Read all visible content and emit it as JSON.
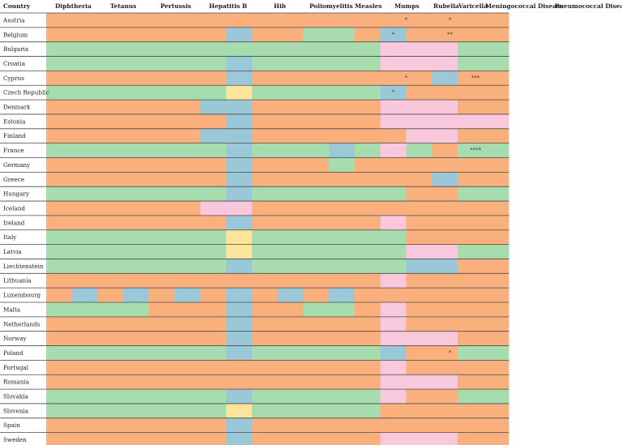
{
  "chart_data": {
    "type": "heatmap",
    "row_header": "Country",
    "columns": [
      "Diphtheria",
      "Tetanus",
      "Pertussis",
      "Hepatitis B",
      "Hib",
      "Poliomyelitis",
      "Measles",
      "Mumps",
      "Rubella",
      "Varicella",
      "Meningococcal Disease",
      "Pneumococcal Disease"
    ],
    "colors": {
      "O": "#f9b07d",
      "G": "#a7dcae",
      "B": "#9bc8d9",
      "P": "#f9c8dc",
      "Y": "#fce49b"
    },
    "rows": [
      {
        "country": "Austria",
        "cells": [
          [
            "O",
            0,
            18
          ]
        ],
        "notes": [
          {
            "text": "*",
            "at": 14
          },
          {
            "text": "*",
            "at": 15.7
          }
        ]
      },
      {
        "country": "Belgium",
        "cells": [
          [
            "O",
            0,
            18
          ],
          [
            "B",
            7,
            8
          ],
          [
            "G",
            10,
            12
          ],
          [
            "B",
            13,
            14
          ]
        ],
        "notes": [
          {
            "text": "*",
            "at": 13.5
          },
          {
            "text": "**",
            "at": 15.7
          }
        ]
      },
      {
        "country": "Bulgaria",
        "cells": [
          [
            "G",
            0,
            18
          ],
          [
            "P",
            13,
            16
          ]
        ]
      },
      {
        "country": "Croatia",
        "cells": [
          [
            "G",
            0,
            18
          ],
          [
            "B",
            7,
            8
          ],
          [
            "P",
            13,
            16
          ]
        ]
      },
      {
        "country": "Cyprus",
        "cells": [
          [
            "O",
            0,
            18
          ],
          [
            "B",
            7,
            8
          ],
          [
            "B",
            15,
            16
          ]
        ],
        "notes": [
          {
            "text": "*",
            "at": 14
          },
          {
            "text": "***",
            "at": 16.7
          }
        ]
      },
      {
        "country": "Czech Republic",
        "cells": [
          [
            "G",
            0,
            18
          ],
          [
            "Y",
            7,
            8
          ],
          [
            "B",
            13,
            14
          ],
          [
            "O",
            14,
            18
          ]
        ],
        "notes": [
          {
            "text": "*",
            "at": 13.5
          }
        ]
      },
      {
        "country": "Denmark",
        "cells": [
          [
            "O",
            0,
            18
          ],
          [
            "B",
            6,
            8
          ],
          [
            "P",
            13,
            16
          ]
        ]
      },
      {
        "country": "Estonia",
        "cells": [
          [
            "O",
            0,
            18
          ],
          [
            "B",
            7,
            8
          ],
          [
            "P",
            13,
            18
          ]
        ]
      },
      {
        "country": "Finland",
        "cells": [
          [
            "O",
            0,
            18
          ],
          [
            "B",
            6,
            8
          ],
          [
            "P",
            14,
            16
          ]
        ]
      },
      {
        "country": "France",
        "cells": [
          [
            "G",
            0,
            18
          ],
          [
            "B",
            7,
            8
          ],
          [
            "B",
            11,
            12
          ],
          [
            "P",
            13,
            14
          ],
          [
            "O",
            15,
            16
          ]
        ],
        "notes": [
          {
            "text": "****",
            "at": 16.7
          }
        ]
      },
      {
        "country": "Germany",
        "cells": [
          [
            "O",
            0,
            18
          ],
          [
            "B",
            7,
            8
          ],
          [
            "G",
            11,
            12
          ]
        ]
      },
      {
        "country": "Greece",
        "cells": [
          [
            "O",
            0,
            18
          ],
          [
            "B",
            7,
            8
          ],
          [
            "B",
            15,
            16
          ]
        ]
      },
      {
        "country": "Hungary",
        "cells": [
          [
            "G",
            0,
            18
          ],
          [
            "B",
            7,
            8
          ],
          [
            "O",
            14,
            16
          ]
        ]
      },
      {
        "country": "Iceland",
        "cells": [
          [
            "O",
            0,
            18
          ],
          [
            "P",
            6,
            8
          ]
        ]
      },
      {
        "country": "Ireland",
        "cells": [
          [
            "O",
            0,
            18
          ],
          [
            "B",
            7,
            8
          ],
          [
            "P",
            13,
            14
          ]
        ]
      },
      {
        "country": "Italy",
        "cells": [
          [
            "G",
            0,
            18
          ],
          [
            "Y",
            7,
            8
          ],
          [
            "O",
            14,
            18
          ]
        ]
      },
      {
        "country": "Latvia",
        "cells": [
          [
            "G",
            0,
            18
          ],
          [
            "Y",
            7,
            8
          ],
          [
            "P",
            14,
            16
          ]
        ]
      },
      {
        "country": "Liechtenstein",
        "cells": [
          [
            "G",
            0,
            18
          ],
          [
            "B",
            7,
            8
          ],
          [
            "B",
            14,
            16
          ],
          [
            "O",
            16,
            18
          ]
        ]
      },
      {
        "country": "Lithuania",
        "cells": [
          [
            "O",
            0,
            18
          ],
          [
            "P",
            13,
            14
          ]
        ]
      },
      {
        "country": "Luxembourg",
        "cells": [
          [
            "O",
            0,
            18
          ],
          [
            "B",
            1,
            2
          ],
          [
            "B",
            3,
            4
          ],
          [
            "B",
            5,
            6
          ],
          [
            "B",
            7,
            8
          ],
          [
            "B",
            9,
            10
          ],
          [
            "B",
            11,
            12
          ]
        ]
      },
      {
        "country": "Malta",
        "cells": [
          [
            "G",
            0,
            4
          ],
          [
            "O",
            4,
            18
          ],
          [
            "B",
            7,
            8
          ],
          [
            "G",
            10,
            12
          ],
          [
            "P",
            13,
            14
          ]
        ]
      },
      {
        "country": "Netherlands",
        "cells": [
          [
            "O",
            0,
            18
          ],
          [
            "B",
            7,
            8
          ],
          [
            "P",
            13,
            14
          ]
        ]
      },
      {
        "country": "Norway",
        "cells": [
          [
            "O",
            0,
            18
          ],
          [
            "B",
            7,
            8
          ],
          [
            "P",
            13,
            16
          ]
        ]
      },
      {
        "country": "Poland",
        "cells": [
          [
            "G",
            0,
            18
          ],
          [
            "B",
            7,
            8
          ],
          [
            "B",
            13,
            14
          ],
          [
            "O",
            14,
            16
          ]
        ],
        "notes": [
          {
            "text": "*",
            "at": 15.7
          }
        ]
      },
      {
        "country": "Portugal",
        "cells": [
          [
            "O",
            0,
            18
          ],
          [
            "P",
            13,
            14
          ]
        ]
      },
      {
        "country": "Romania",
        "cells": [
          [
            "O",
            0,
            18
          ],
          [
            "P",
            13,
            16
          ]
        ]
      },
      {
        "country": "Slovakia",
        "cells": [
          [
            "G",
            0,
            18
          ],
          [
            "B",
            7,
            8
          ],
          [
            "P",
            13,
            14
          ],
          [
            "O",
            14,
            16
          ]
        ]
      },
      {
        "country": "Slovenia",
        "cells": [
          [
            "G",
            0,
            18
          ],
          [
            "Y",
            7,
            8
          ],
          [
            "O",
            13,
            18
          ]
        ]
      },
      {
        "country": "Spain",
        "cells": [
          [
            "O",
            0,
            18
          ],
          [
            "B",
            7,
            8
          ]
        ]
      },
      {
        "country": "Sweden",
        "cells": [
          [
            "O",
            0,
            18
          ],
          [
            "B",
            7,
            8
          ],
          [
            "P",
            13,
            16
          ]
        ]
      }
    ]
  }
}
